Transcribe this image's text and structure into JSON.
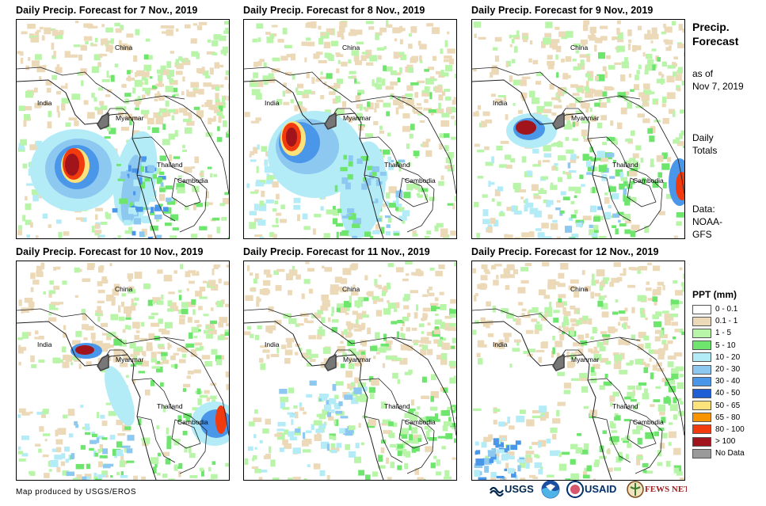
{
  "panels": [
    {
      "title": "Daily Precip. Forecast for 7 Nov., 2019",
      "labels": {
        "china": "China",
        "india": "India",
        "myanmar": "Myanmar",
        "thailand": "Thailand",
        "cambodia": "Cambodia"
      },
      "storm": "large-cyclone-bay-of-bengal"
    },
    {
      "title": "Daily Precip. Forecast for 8 Nov., 2019",
      "labels": {
        "china": "China",
        "india": "India",
        "myanmar": "Myanmar",
        "thailand": "Thailand",
        "cambodia": "Cambodia"
      },
      "storm": "cyclone-north-bay-of-bengal"
    },
    {
      "title": "Daily Precip. Forecast for 9 Nov., 2019",
      "labels": {
        "china": "China",
        "india": "India",
        "myanmar": "Myanmar",
        "thailand": "Thailand",
        "cambodia": "Cambodia"
      },
      "storm": "landfall-bangladesh-and-vietnam-coast"
    },
    {
      "title": "Daily Precip. Forecast for 10 Nov., 2019",
      "labels": {
        "china": "China",
        "india": "India",
        "myanmar": "Myanmar",
        "thailand": "Thailand",
        "cambodia": "Cambodia"
      },
      "storm": "bangladesh-and-cambodia"
    },
    {
      "title": "Daily Precip. Forecast for 11 Nov., 2019",
      "labels": {
        "china": "China",
        "india": "India",
        "myanmar": "Myanmar",
        "thailand": "Thailand",
        "cambodia": "Cambodia"
      },
      "storm": "light-scattered"
    },
    {
      "title": "Daily Precip. Forecast for 12 Nov., 2019",
      "labels": {
        "china": "China",
        "india": "India",
        "myanmar": "Myanmar",
        "thailand": "Thailand",
        "cambodia": "Cambodia"
      },
      "storm": "light-scattered"
    }
  ],
  "sidebar": {
    "title_line1": "Precip.",
    "title_line2": "Forecast",
    "asof_line1": "as of",
    "asof_line2": "Nov 7, 2019",
    "totals_line1": "Daily",
    "totals_line2": "Totals",
    "data_line1": "Data:",
    "data_line2": "NOAA-",
    "data_line3": "GFS"
  },
  "legend": {
    "title": "PPT (mm)",
    "items": [
      {
        "label": "0 - 0.1",
        "color": "#ffffff"
      },
      {
        "label": "0.1 - 1",
        "color": "#ecd9b8"
      },
      {
        "label": "1 - 5",
        "color": "#b8f5a8"
      },
      {
        "label": "5 - 10",
        "color": "#6ee66e"
      },
      {
        "label": "10 - 20",
        "color": "#b3ecf7"
      },
      {
        "label": "20 - 30",
        "color": "#8cc8f0"
      },
      {
        "label": "30 - 40",
        "color": "#4a96e8"
      },
      {
        "label": "40 - 50",
        "color": "#1f5fd6"
      },
      {
        "label": "50 - 65",
        "color": "#fce27a"
      },
      {
        "label": "65 - 80",
        "color": "#f79400"
      },
      {
        "label": "80 - 100",
        "color": "#f23a0f"
      },
      {
        "label": "> 100",
        "color": "#a1141b"
      },
      {
        "label": "No Data",
        "color": "#9a9a9a"
      }
    ]
  },
  "footer": {
    "credit": "Map produced by USGS/EROS",
    "logos": [
      "USGS",
      "NOAA",
      "USAID",
      "FEWS NET"
    ]
  }
}
